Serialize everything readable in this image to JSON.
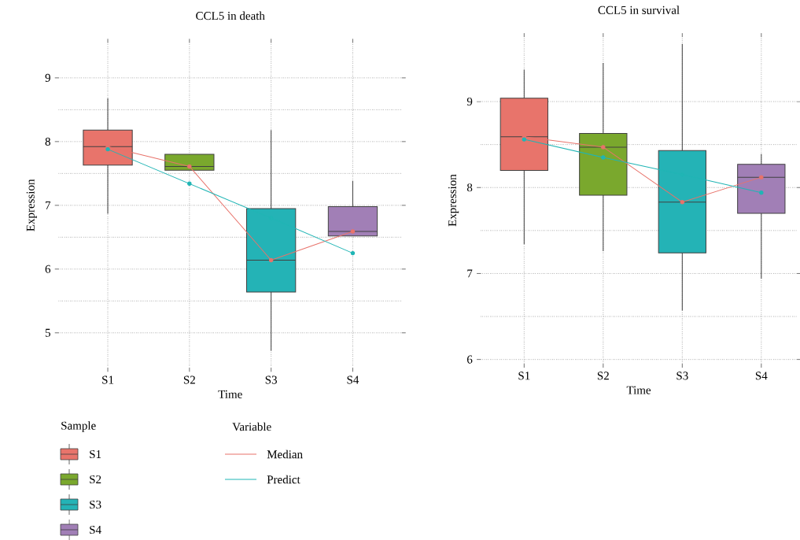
{
  "chart_data": [
    {
      "type": "box",
      "title": "CCL5 in death",
      "xlabel": "Time",
      "ylabel": "Expression",
      "categories": [
        "S1",
        "S2",
        "S3",
        "S4"
      ],
      "colors": [
        "#e8746b",
        "#7aa82d",
        "#24b3b6",
        "#a17fb6"
      ],
      "boxes": [
        {
          "low": 6.87,
          "q1": 7.63,
          "median": 7.92,
          "q3": 8.18,
          "high": 8.68
        },
        {
          "low": 7.55,
          "q1": 7.55,
          "median": 7.61,
          "q3": 7.8,
          "high": 7.8
        },
        {
          "low": 4.72,
          "q1": 5.64,
          "median": 6.14,
          "q3": 6.95,
          "high": 8.18
        },
        {
          "low": 6.52,
          "q1": 6.52,
          "median": 6.59,
          "q3": 6.98,
          "high": 7.38
        }
      ],
      "series": [
        {
          "type": "line",
          "color": "#e8736b",
          "values": [
            7.92,
            7.61,
            6.14,
            6.59
          ]
        },
        {
          "type": "line",
          "color": "#20b5b5",
          "values": [
            7.88,
            7.34,
            6.8,
            6.25
          ]
        }
      ],
      "ylim": [
        4.45,
        9.55
      ],
      "yticks": [
        5,
        6,
        7,
        8,
        9
      ],
      "grid": true,
      "marker": "circle",
      "line_style": "solid",
      "legend": "bottom",
      "legend_title": "Sample"
    },
    {
      "type": "box",
      "title": "CCL5 in survival",
      "xlabel": "Time",
      "ylabel": "Expression",
      "categories": [
        "S1",
        "S2",
        "S3",
        "S4"
      ],
      "colors": [
        "#e8746b",
        "#7aa82d",
        "#24b3b6",
        "#a17fb6"
      ],
      "boxes": [
        {
          "low": 7.34,
          "q1": 8.2,
          "median": 8.59,
          "q3": 9.04,
          "high": 9.37
        },
        {
          "low": 7.26,
          "q1": 7.91,
          "median": 8.47,
          "q3": 8.63,
          "high": 9.45
        },
        {
          "low": 6.57,
          "q1": 7.24,
          "median": 7.83,
          "q3": 8.43,
          "high": 9.67
        },
        {
          "low": 6.94,
          "q1": 7.7,
          "median": 8.12,
          "q3": 8.27,
          "high": 8.39
        }
      ],
      "series": [
        {
          "type": "line",
          "name": "Median",
          "color": "#e8736b",
          "values": [
            8.59,
            8.47,
            7.83,
            8.12
          ]
        },
        {
          "type": "line",
          "name": "Predict",
          "color": "#20b5b5",
          "values": [
            8.56,
            8.35,
            8.15,
            7.94
          ]
        }
      ],
      "ylim": [
        5.95,
        9.75
      ],
      "yticks": [
        6,
        7,
        8,
        9
      ],
      "grid": true,
      "marker": "circle",
      "line_style": "solid",
      "legend": "bottom",
      "legend_title": "Variable"
    }
  ]
}
